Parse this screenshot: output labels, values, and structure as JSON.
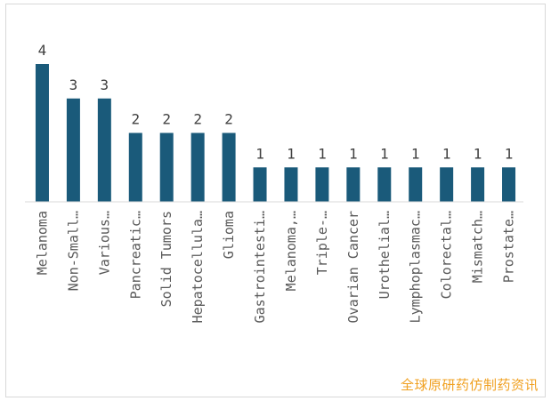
{
  "chart_data": {
    "type": "bar",
    "categories": [
      "Melanoma",
      "Non-Small…",
      "Various…",
      "Pancreatic…",
      "Solid Tumors",
      "Hepatocellula…",
      "Glioma",
      "Gastrointesti…",
      "Melanoma,…",
      "Triple-…",
      "Ovarian Cancer",
      "Urothelial…",
      "Lymphoplasmac…",
      "Colorectal…",
      "Mismatch…",
      "Prostate…"
    ],
    "values": [
      4,
      3,
      3,
      2,
      2,
      2,
      2,
      1,
      1,
      1,
      1,
      1,
      1,
      1,
      1,
      1
    ],
    "title": "",
    "xlabel": "",
    "ylabel": "",
    "ylim": [
      0,
      4
    ],
    "grid": false,
    "bar_color": "#1a5a7a"
  },
  "watermark": "全球原研药仿制药资讯"
}
